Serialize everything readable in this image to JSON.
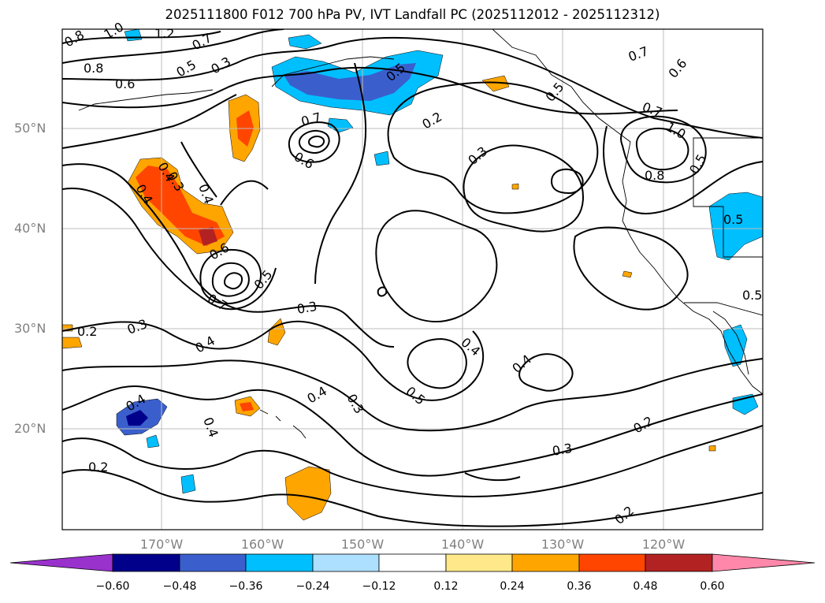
{
  "title": "2025111800 F012 700 hPa PV, IVT Landfall PC (2025112012 - 2025112312)",
  "axes": {
    "lon_labels": [
      "170°W",
      "160°W",
      "150°W",
      "140°W",
      "130°W",
      "120°W"
    ],
    "lat_labels": [
      "50°N",
      "40°N",
      "30°N",
      "20°N"
    ]
  },
  "contour_labels": [
    "0.8",
    "1.0",
    "1.2",
    "0.7",
    "0.8",
    "0.5",
    "0.3",
    "0.6",
    "0.5",
    "0.2",
    "0.5",
    "0.7",
    "0.6",
    "0.7",
    "0.6",
    "0.7",
    "1.0",
    "0.8",
    "0.3",
    "0.5",
    "0.4",
    "0.4",
    "0.3",
    "0.4",
    "0.6",
    "0.7",
    "0.5",
    "0.3",
    "0.2",
    "0.3",
    "0.4",
    "0.4",
    "0.4",
    "0.4",
    "0.3",
    "0.5",
    "0.4",
    "0.4",
    "0.2",
    "0.3",
    "0.2",
    "0.2",
    "0.5",
    "0.5"
  ],
  "colorbar": {
    "colors": [
      "#9932CC",
      "#00008B",
      "#3A5FCD",
      "#00BFFF",
      "#ADDFFF",
      "#FFFFFF",
      "#FFE88A",
      "#FFA500",
      "#FF4500",
      "#B22222",
      "#FF88AA"
    ],
    "ticks": [
      "−0.60",
      "−0.48",
      "−0.36",
      "−0.24",
      "−0.12",
      "0.12",
      "0.24",
      "0.36",
      "0.48",
      "0.60"
    ]
  }
}
